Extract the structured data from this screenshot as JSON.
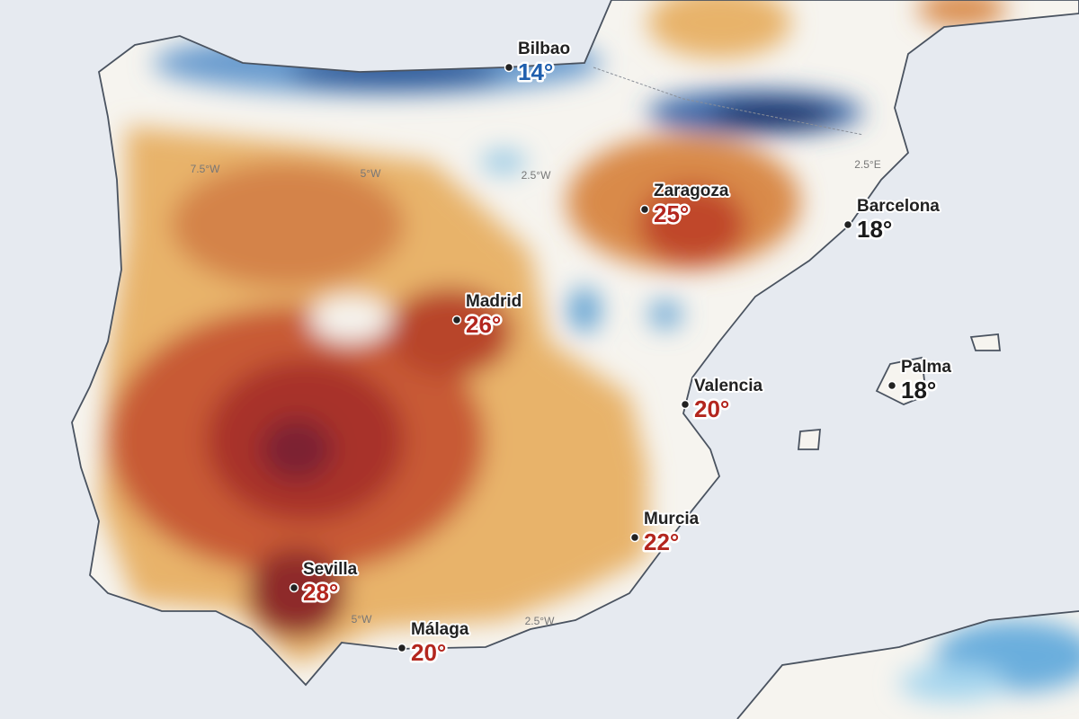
{
  "cities": [
    {
      "name": "Bilbao",
      "temp": "14°",
      "color": "#1f5fae"
    },
    {
      "name": "Zaragoza",
      "temp": "25°",
      "color": "#b3261e"
    },
    {
      "name": "Barcelona",
      "temp": "18°",
      "color": "#1a1a1a"
    },
    {
      "name": "Madrid",
      "temp": "26°",
      "color": "#b3261e"
    },
    {
      "name": "Palma",
      "temp": "18°",
      "color": "#1a1a1a"
    },
    {
      "name": "Valencia",
      "temp": "20°",
      "color": "#b3261e"
    },
    {
      "name": "Murcia",
      "temp": "22°",
      "color": "#b3261e"
    },
    {
      "name": "Sevilla",
      "temp": "28°",
      "color": "#b3261e"
    },
    {
      "name": "Málaga",
      "temp": "20°",
      "color": "#b3261e"
    }
  ],
  "grid_labels": [
    "7.5°W",
    "5°W",
    "2.5°W",
    "2.5°E",
    "5°W",
    "2.5°W"
  ]
}
